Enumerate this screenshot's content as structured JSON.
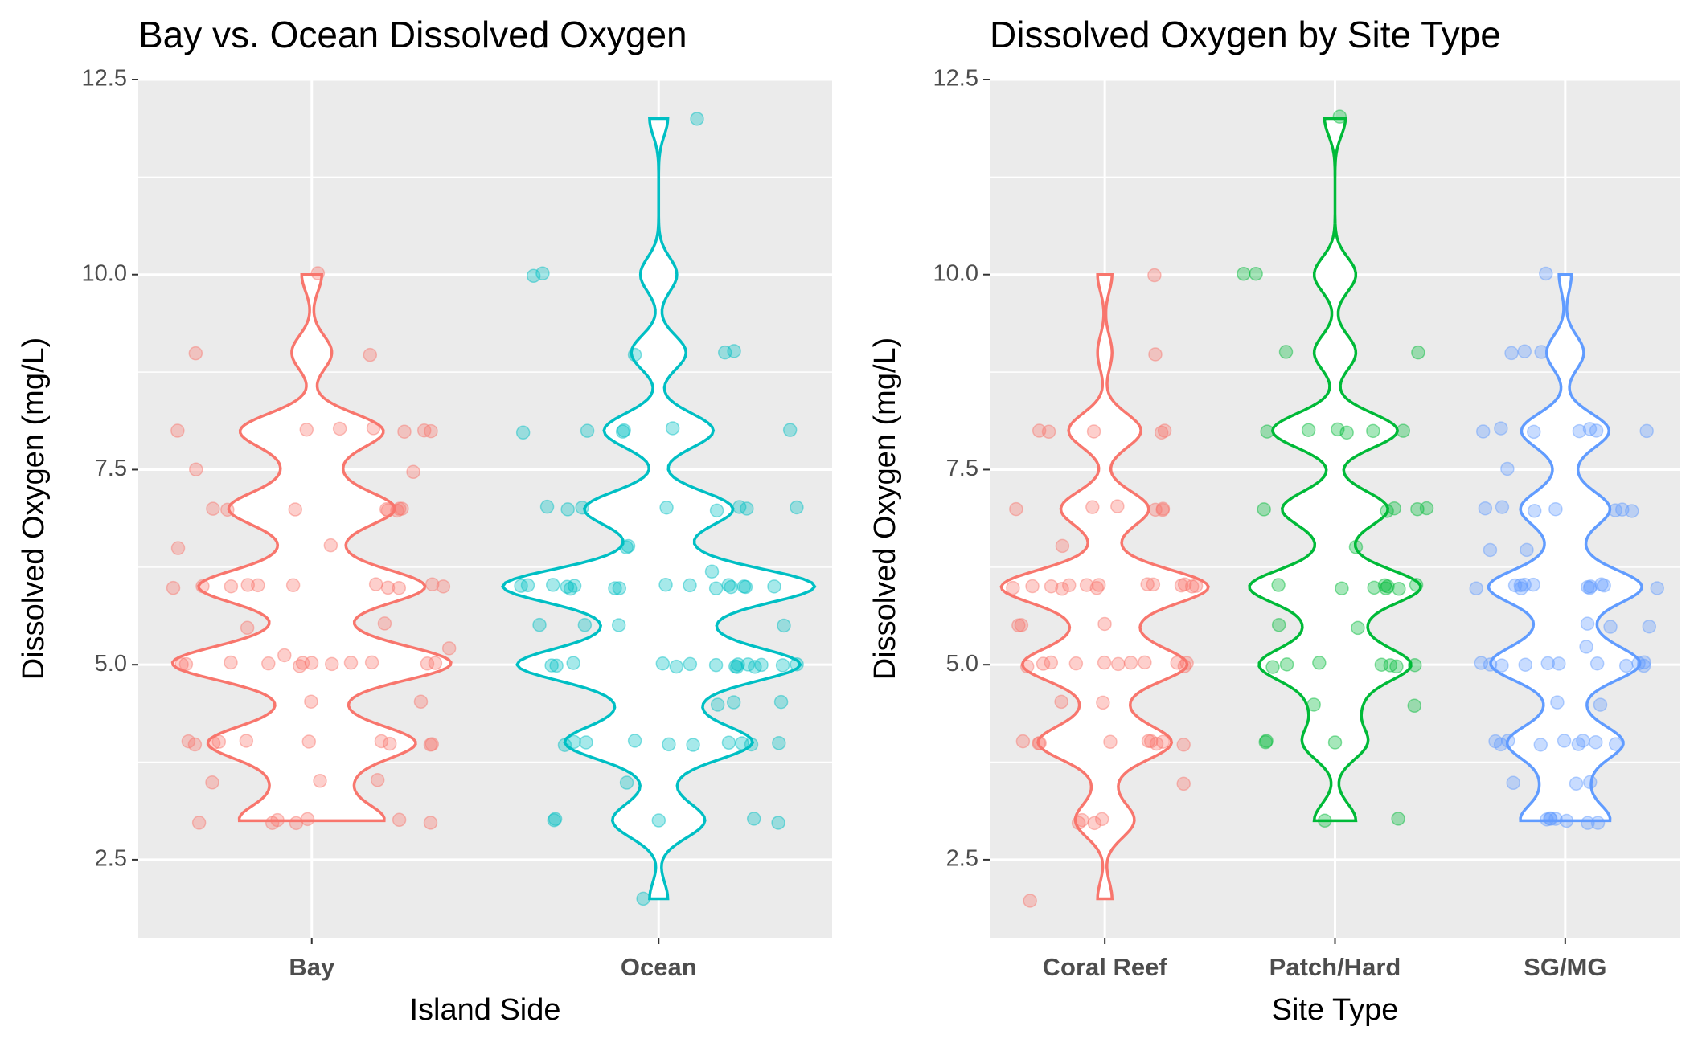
{
  "chart_data": [
    {
      "type": "violin",
      "title": "Bay vs. Ocean Dissolved Oxygen",
      "x_label": "Island Side",
      "y_label": "Dissolved Oxygen (mg/L)",
      "categories": [
        "Bay",
        "Ocean"
      ],
      "colors": [
        "#F8766D",
        "#00BFC4"
      ],
      "ylim": [
        1.5,
        12.5
      ],
      "yticks": [
        {
          "value": 2.5,
          "label": "2.5"
        },
        {
          "value": 5,
          "label": "5.0"
        },
        7.5,
        {
          "value": 10,
          "label": "10.0"
        },
        12.5
      ],
      "grid": true,
      "values": [
        [
          3,
          3,
          3,
          3,
          3,
          3,
          3,
          3.5,
          3.5,
          3.5,
          4,
          4,
          4,
          4,
          4,
          4,
          4,
          4,
          4,
          4,
          4.5,
          4.5,
          5,
          5,
          5,
          5,
          5,
          5,
          5,
          5,
          5,
          5,
          5,
          5,
          5.1,
          5.2,
          5.5,
          5.5,
          6,
          6,
          6,
          6,
          6,
          6,
          6,
          6,
          6,
          6,
          6,
          6.5,
          6.5,
          7,
          7,
          7,
          7,
          7,
          7,
          7,
          7,
          7.5,
          7.5,
          8,
          8,
          8,
          8,
          8,
          8,
          8,
          9,
          9,
          10
        ],
        [
          2,
          3,
          3,
          3,
          3,
          3,
          3.5,
          4,
          4,
          4,
          4,
          4,
          4,
          4,
          4,
          4,
          4,
          4.5,
          4.5,
          4.5,
          5,
          5,
          5,
          5,
          5,
          5,
          5,
          5,
          5,
          5,
          5,
          5,
          5,
          5,
          5,
          5.5,
          5.5,
          5.5,
          5.5,
          6,
          6,
          6,
          6,
          6,
          6,
          6,
          6,
          6,
          6,
          6,
          6,
          6,
          6,
          6,
          6,
          6.2,
          6.5,
          6.5,
          7,
          7,
          7,
          7,
          7,
          7,
          7,
          7,
          8,
          8,
          8,
          8,
          8,
          8,
          9,
          9,
          9,
          10,
          10,
          12
        ]
      ]
    },
    {
      "type": "violin",
      "title": "Dissolved Oxygen by Site Type",
      "x_label": "Site Type",
      "y_label": "Dissolved Oxygen (mg/L)",
      "categories": [
        "Coral Reef",
        "Patch/Hard",
        "SG/MG"
      ],
      "colors": [
        "#F8766D",
        "#00BA38",
        "#619CFF"
      ],
      "ylim": [
        1.5,
        12.5
      ],
      "yticks": [
        {
          "value": 2.5,
          "label": "2.5"
        },
        {
          "value": 5,
          "label": "5.0"
        },
        7.5,
        {
          "value": 10,
          "label": "10.0"
        },
        12.5
      ],
      "grid": true,
      "values": [
        [
          2,
          3,
          3,
          3,
          3,
          3.5,
          4,
          4,
          4,
          4,
          4,
          4,
          4,
          4,
          4,
          4.5,
          4.5,
          5,
          5,
          5,
          5,
          5,
          5,
          5,
          5,
          5,
          5,
          5,
          5.5,
          5.5,
          5.5,
          6,
          6,
          6,
          6,
          6,
          6,
          6,
          6,
          6,
          6,
          6,
          6,
          6,
          6,
          6.5,
          7,
          7,
          7,
          7,
          7,
          7,
          8,
          8,
          8,
          8,
          8,
          9,
          10
        ],
        [
          3,
          3,
          4,
          4,
          4,
          4.5,
          4.5,
          5,
          5,
          5,
          5,
          5,
          5,
          5,
          5.5,
          5.5,
          6,
          6,
          6,
          6,
          6,
          6,
          6,
          6,
          6.5,
          7,
          7,
          7,
          7,
          7,
          8,
          8,
          8,
          8,
          8,
          8,
          9,
          9,
          10,
          10,
          12
        ],
        [
          3,
          3,
          3,
          3,
          3,
          3,
          3,
          3.5,
          3.5,
          3.5,
          4,
          4,
          4,
          4,
          4,
          4,
          4,
          4,
          4,
          4.5,
          4.5,
          5,
          5,
          5,
          5,
          5,
          5,
          5,
          5,
          5,
          5,
          5,
          5.2,
          5.5,
          5.5,
          5.5,
          6,
          6,
          6,
          6,
          6,
          6,
          6,
          6,
          6,
          6,
          6,
          6,
          6.5,
          6.5,
          7,
          7,
          7,
          7,
          7,
          7,
          7,
          7.5,
          8,
          8,
          8,
          8,
          8,
          8,
          8,
          9,
          9,
          9,
          10
        ]
      ]
    }
  ]
}
